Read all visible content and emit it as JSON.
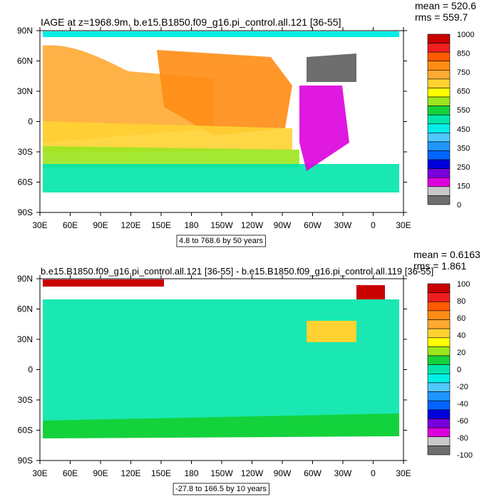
{
  "chart_data": [
    {
      "type": "heatmap",
      "title": "IAGE at z=1968.9m, b.e15.B1850.f09_g16.pi_control.all.121 [36-55]",
      "stats": [
        "mean = 520.6",
        "rms = 559.7"
      ],
      "x_ticks": [
        "30E",
        "60E",
        "90E",
        "120E",
        "150E",
        "180",
        "150W",
        "120W",
        "90W",
        "60W",
        "30W",
        "0",
        "30E"
      ],
      "y_ticks": [
        "90N",
        "60N",
        "30N",
        "0",
        "30S",
        "60S",
        "90S"
      ],
      "info": "4.8 to 768.6 by 50 years",
      "colorbar": {
        "labels": [
          "1000",
          "850",
          "750",
          "650",
          "550",
          "450",
          "350",
          "250",
          "150",
          "0"
        ],
        "colors": [
          "#c80000",
          "#f01e1e",
          "#ff5a00",
          "#ff8c14",
          "#ffaa32",
          "#ffd232",
          "#ffff00",
          "#9be61e",
          "#14d23c",
          "#00e6aa",
          "#00f0e6",
          "#50c8ff",
          "#1e96ff",
          "#0064ff",
          "#0000dc",
          "#7800dc",
          "#dc00dc",
          "#c8c8c8",
          "#6e6e6e"
        ]
      }
    },
    {
      "type": "heatmap",
      "title": "b.e15.B1850.f09_g16.pi_control.all.121 [36-55] - b.e15.B1850.f09_g16.pi_control.all.119 [36-55]",
      "stats": [
        "mean = 0.6163",
        "rms = 1.861"
      ],
      "x_ticks": [
        "30E",
        "60E",
        "90E",
        "120E",
        "150E",
        "180",
        "150W",
        "120W",
        "90W",
        "60W",
        "30W",
        "0",
        "30E"
      ],
      "y_ticks": [
        "90N",
        "60N",
        "30N",
        "0",
        "30S",
        "60S",
        "90S"
      ],
      "info": "-27.8 to 166.5 by 10 years",
      "colorbar": {
        "labels": [
          "100",
          "80",
          "60",
          "40",
          "20",
          "0",
          "-20",
          "-40",
          "-60",
          "-80",
          "-100"
        ],
        "colors": [
          "#c80000",
          "#f01e1e",
          "#ff5a00",
          "#ff8c14",
          "#ffaa32",
          "#ffd232",
          "#ffff00",
          "#9be61e",
          "#14d23c",
          "#00e6aa",
          "#00f0e6",
          "#50c8ff",
          "#1e96ff",
          "#0064ff",
          "#0000dc",
          "#7800dc",
          "#dc00dc",
          "#c8c8c8",
          "#6e6e6e"
        ]
      }
    }
  ]
}
